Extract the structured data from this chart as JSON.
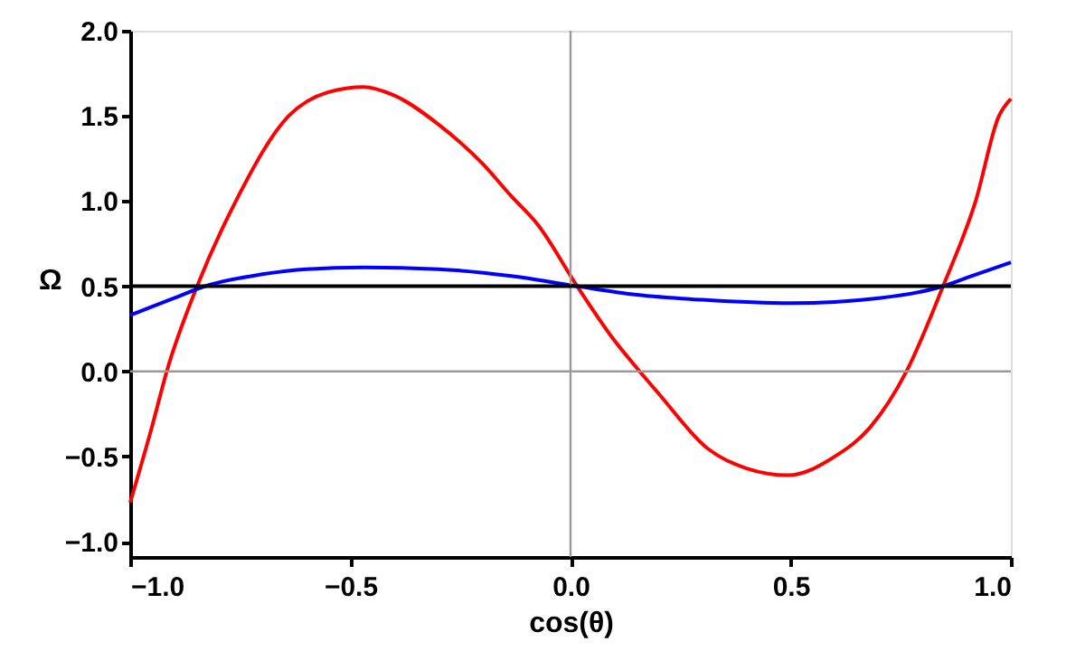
{
  "chart_data": {
    "type": "line",
    "xlabel": "cos(θ)",
    "ylabel": "Ω",
    "xlim": [
      -1.0,
      1.0
    ],
    "ylim": [
      -1.09,
      2.0
    ],
    "xticks": [
      {
        "value": -1,
        "label": "−1.0"
      },
      {
        "value": -0.5,
        "label": "−0.5"
      },
      {
        "value": 0,
        "label": "0.0"
      },
      {
        "value": 0.5,
        "label": "0.5"
      },
      {
        "value": 1,
        "label": "1.0"
      }
    ],
    "yticks": [
      {
        "value": -1,
        "label": "−1.0"
      },
      {
        "value": -0.5,
        "label": "−0.5"
      },
      {
        "value": 0,
        "label": "0.0"
      },
      {
        "value": 0.5,
        "label": "0.5"
      },
      {
        "value": 1,
        "label": "1.0"
      },
      {
        "value": 1.5,
        "label": "1.5"
      },
      {
        "value": 2,
        "label": "2.0"
      }
    ],
    "marker": "none",
    "line_style": "solid",
    "series": [
      {
        "color": "#ff0000",
        "x": [
          -1.0,
          -0.95,
          -0.917,
          -0.848,
          -0.76,
          -0.64,
          -0.55,
          -0.47,
          -0.4,
          -0.3,
          -0.2,
          -0.135,
          -0.074,
          0.015,
          0.1,
          0.157,
          0.2,
          0.31,
          0.4,
          0.494,
          0.6,
          0.68,
          0.763,
          0.846,
          0.92,
          0.973,
          1.0
        ],
        "values": [
          -0.77,
          -0.32,
          0.0,
          0.5,
          1.0,
          1.5,
          1.64,
          1.67,
          1.62,
          1.45,
          1.22,
          1.03,
          0.86,
          0.5,
          0.18,
          0.0,
          -0.13,
          -0.45,
          -0.57,
          -0.61,
          -0.5,
          -0.33,
          0.0,
          0.5,
          1.0,
          1.5,
          1.6
        ]
      },
      {
        "color": "#0000ff",
        "x": [
          -1.0,
          -0.9,
          -0.83,
          -0.7,
          -0.6,
          -0.47,
          -0.3,
          -0.135,
          0.015,
          0.15,
          0.3,
          0.5,
          0.7,
          0.846,
          0.9,
          1.0
        ],
        "values": [
          0.33,
          0.43,
          0.5,
          0.57,
          0.6,
          0.61,
          0.6,
          0.56,
          0.5,
          0.45,
          0.42,
          0.4,
          0.43,
          0.5,
          0.55,
          0.64
        ]
      }
    ],
    "ref_lines": [
      {
        "axis": "y",
        "value": 0,
        "color": "#999999"
      },
      {
        "axis": "x",
        "value": 0,
        "color": "#999999"
      },
      {
        "axis": "y",
        "value": 0.5,
        "color": "#000000"
      }
    ]
  }
}
